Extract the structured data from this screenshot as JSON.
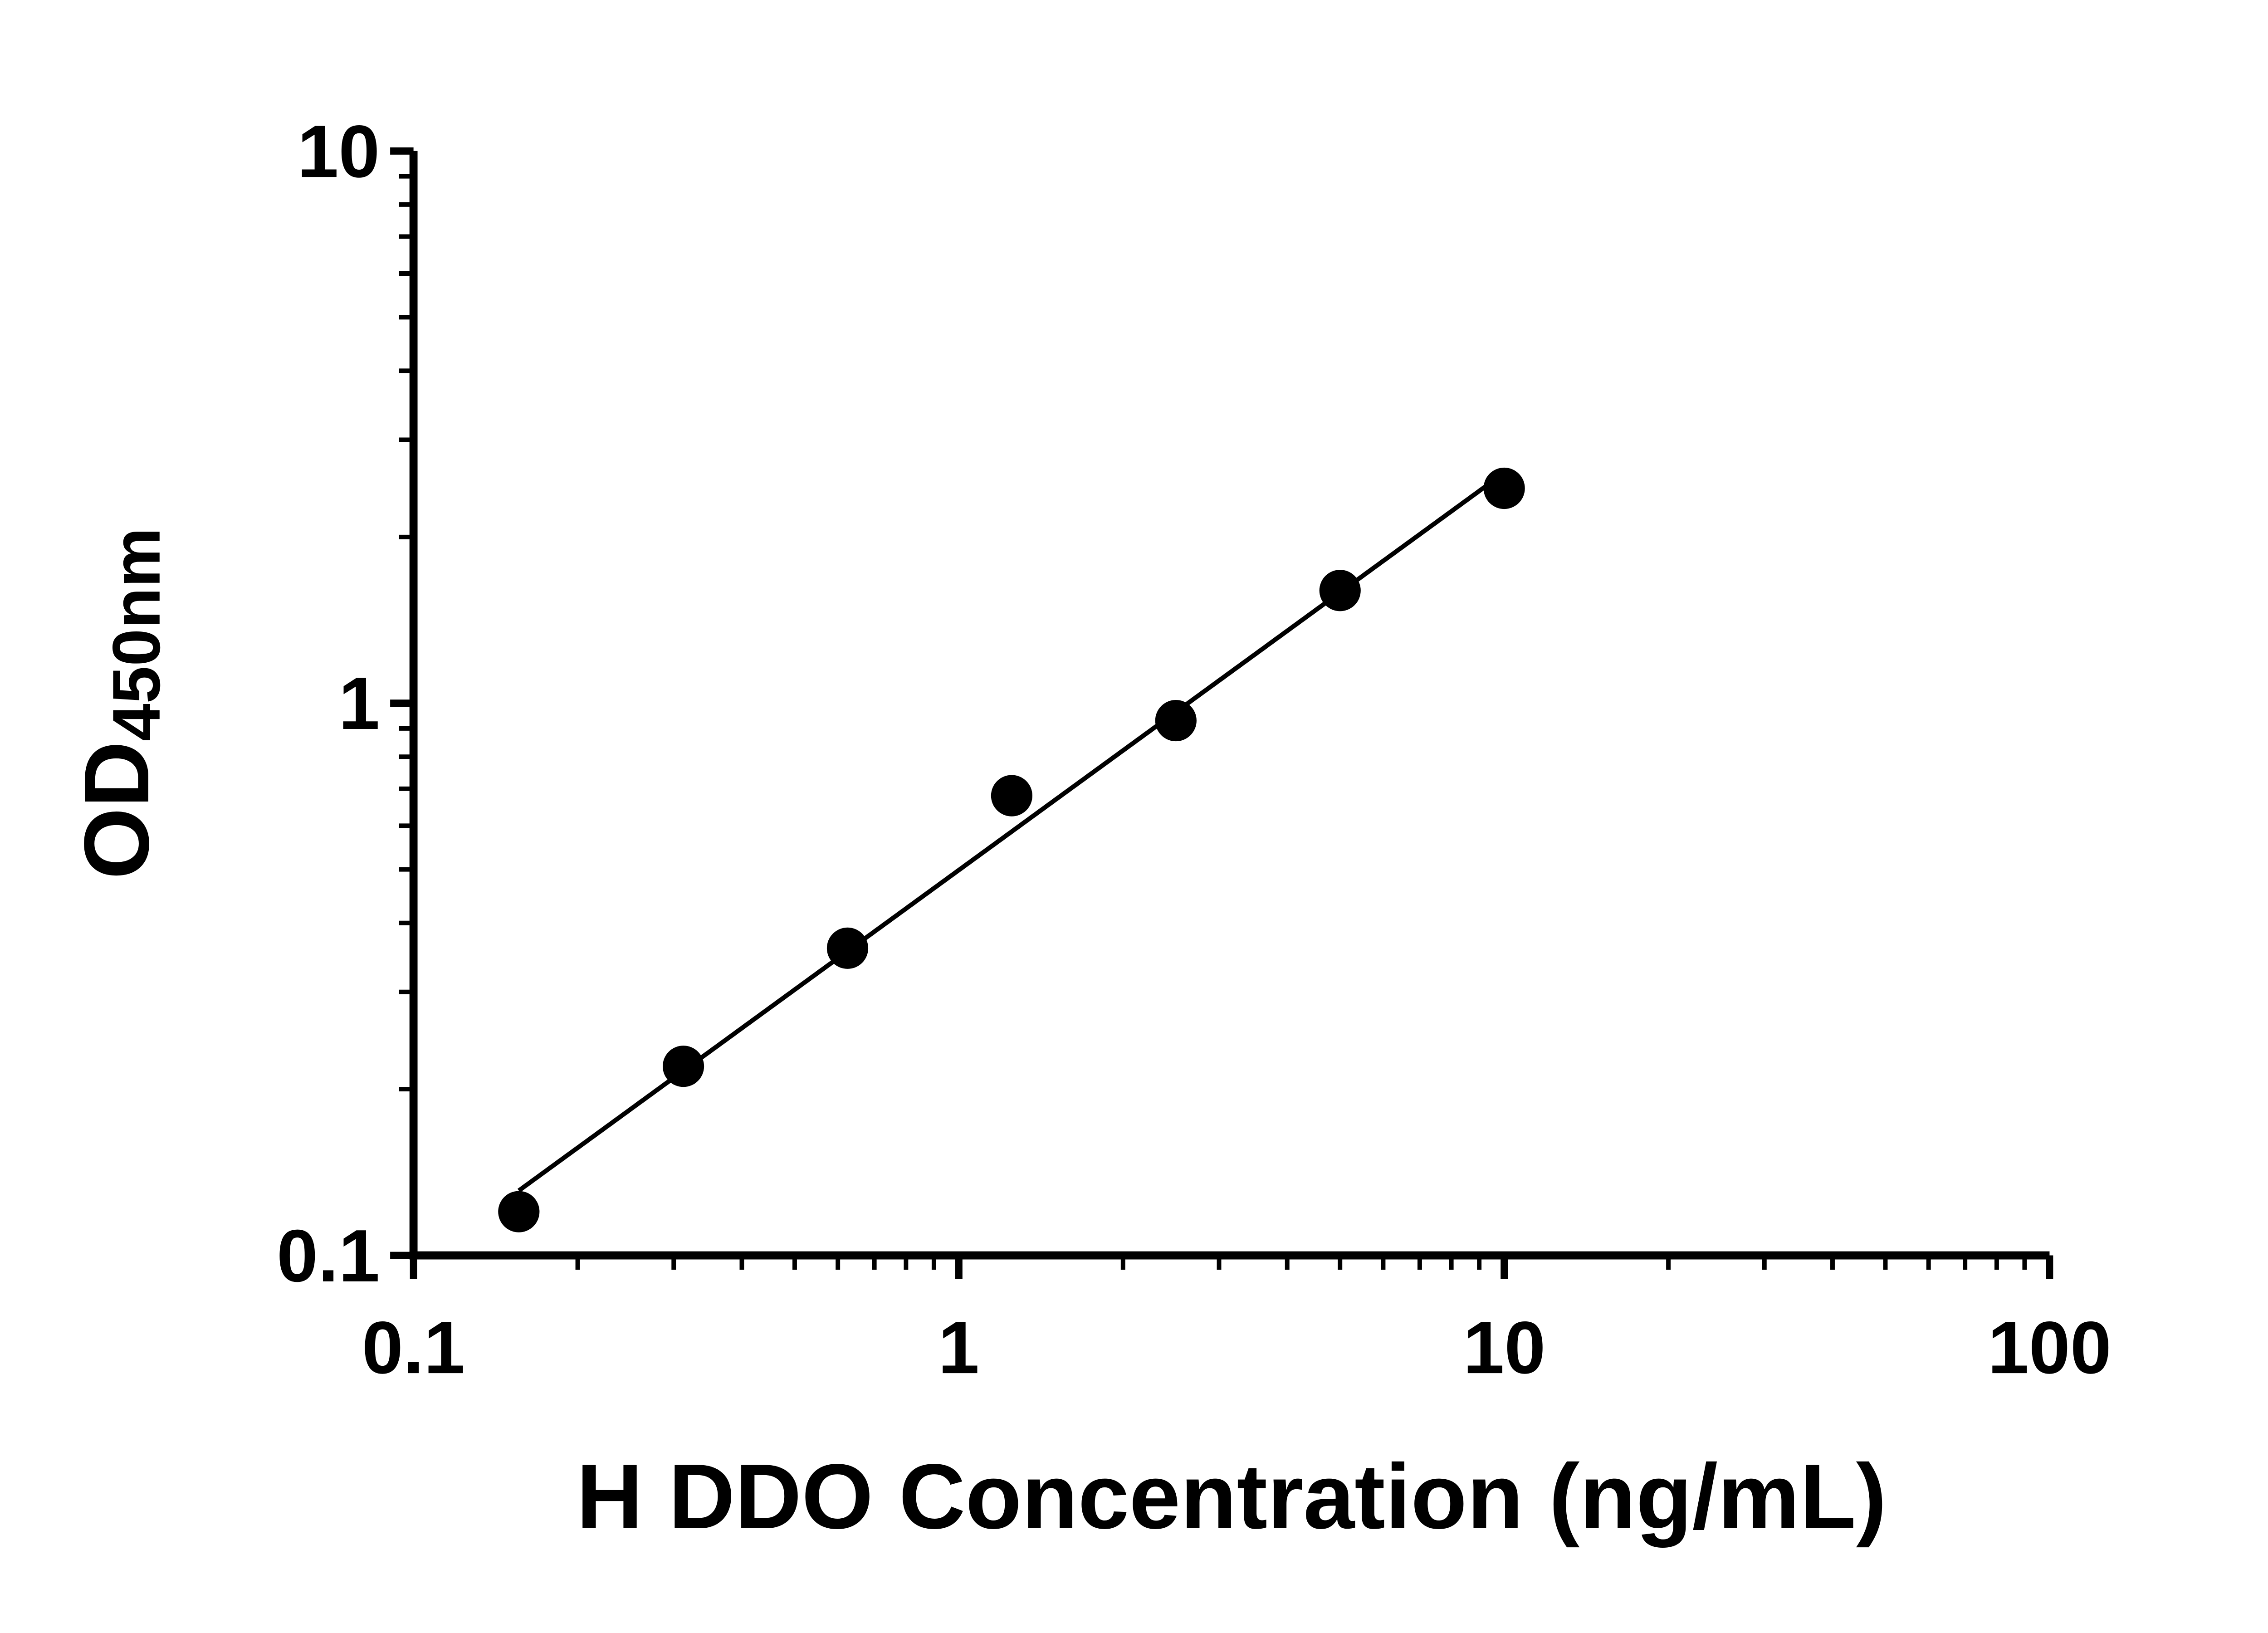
{
  "chart_data": {
    "type": "scatter",
    "title": "",
    "xlabel": "H DDO Concentration (ng/mL)",
    "ylabel_main": "OD",
    "ylabel_sub": "450nm",
    "x_scale": "log",
    "y_scale": "log",
    "xlim": [
      0.1,
      100
    ],
    "ylim": [
      0.1,
      10
    ],
    "x_ticks": [
      0.1,
      1,
      10,
      100
    ],
    "x_tick_labels": [
      "0.1",
      "1",
      "10",
      "100"
    ],
    "y_ticks": [
      0.1,
      1,
      10
    ],
    "y_tick_labels": [
      "0.1",
      "1",
      "10"
    ],
    "grid": false,
    "legend": null,
    "marker_color": "#000000",
    "line_color": "#000000",
    "fit_line": "linear-in-log-log",
    "points": [
      {
        "x": 0.156,
        "y": 0.12
      },
      {
        "x": 0.3125,
        "y": 0.22
      },
      {
        "x": 0.625,
        "y": 0.36
      },
      {
        "x": 1.25,
        "y": 0.68
      },
      {
        "x": 2.5,
        "y": 0.93
      },
      {
        "x": 5,
        "y": 1.6
      },
      {
        "x": 10,
        "y": 2.45
      }
    ]
  }
}
